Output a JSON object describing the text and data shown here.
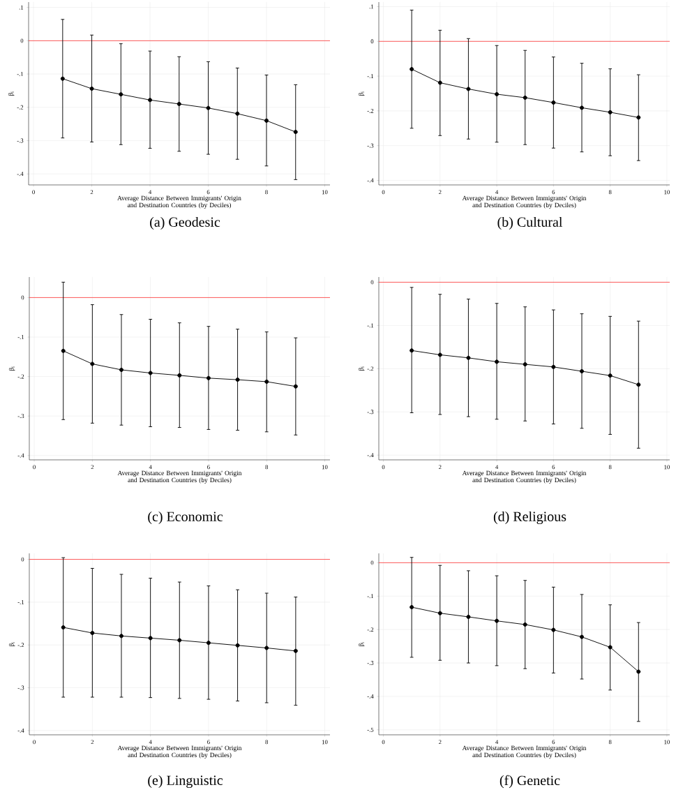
{
  "chart_data": [
    {
      "type": "line",
      "title": "(a) Geodesic",
      "xlabel": "Average Distance Between Immigrants' Origin and Destination Countries (by Deciles)",
      "ylabel": "β$_{i}$",
      "color": "#000000",
      "marker": "circle",
      "grid": true,
      "x": [
        1,
        2,
        3,
        4,
        5,
        6,
        7,
        8,
        9
      ],
      "values": [
        -0.114,
        -0.144,
        -0.161,
        -0.178,
        -0.19,
        -0.202,
        -0.219,
        -0.24,
        -0.274
      ],
      "errors": [
        [
          -0.292,
          0.064
        ],
        [
          -0.304,
          0.017
        ],
        [
          -0.312,
          -0.009
        ],
        [
          -0.323,
          -0.031
        ],
        [
          -0.332,
          -0.048
        ],
        [
          -0.341,
          -0.063
        ],
        [
          -0.356,
          -0.082
        ],
        [
          -0.376,
          -0.103
        ],
        [
          -0.417,
          -0.132
        ]
      ],
      "xlim": [
        -0.17,
        10.18
      ],
      "xticks": [
        0,
        2,
        4,
        6,
        8,
        10
      ],
      "ylim": [
        -0.433,
        0.116
      ],
      "yticks": [
        {
          "value": 0.1,
          "label": ".1"
        },
        {
          "value": 0,
          "label": "0"
        },
        {
          "value": -0.1,
          "label": "-.1"
        },
        {
          "value": -0.2,
          "label": "-.2"
        },
        {
          "value": -0.3,
          "label": "-.3"
        },
        {
          "value": -0.4,
          "label": "-.4"
        }
      ],
      "ref_lines": [
        {
          "axis": "y",
          "value": 0,
          "color": "#ff3333"
        }
      ]
    },
    {
      "type": "line",
      "title": "(b) Cultural",
      "xlabel": "Average Distance Between Immigrants' Origin and Destination Countries (by Deciles)",
      "ylabel": "β$_{i}$",
      "color": "#000000",
      "marker": "circle",
      "grid": true,
      "x": [
        1,
        2,
        3,
        4,
        5,
        6,
        7,
        8,
        9
      ],
      "values": [
        -0.08,
        -0.119,
        -0.137,
        -0.152,
        -0.162,
        -0.176,
        -0.191,
        -0.204,
        -0.219
      ],
      "errors": [
        [
          -0.25,
          0.09
        ],
        [
          -0.271,
          0.032
        ],
        [
          -0.281,
          0.008
        ],
        [
          -0.29,
          -0.012
        ],
        [
          -0.297,
          -0.026
        ],
        [
          -0.307,
          -0.045
        ],
        [
          -0.318,
          -0.063
        ],
        [
          -0.329,
          -0.079
        ],
        [
          -0.343,
          -0.096
        ]
      ],
      "xlim": [
        -0.16,
        10.1
      ],
      "xticks": [
        0,
        2,
        4,
        6,
        8,
        10
      ],
      "ylim": [
        -0.413,
        0.113
      ],
      "yticks": [
        {
          "value": 0.1,
          "label": ".1"
        },
        {
          "value": 0,
          "label": "0"
        },
        {
          "value": -0.1,
          "label": "-.1"
        },
        {
          "value": -0.2,
          "label": "-.2"
        },
        {
          "value": -0.3,
          "label": "-.3"
        },
        {
          "value": -0.4,
          "label": "-.4"
        }
      ],
      "ref_lines": [
        {
          "axis": "y",
          "value": 0,
          "color": "#ff3333"
        }
      ]
    },
    {
      "type": "line",
      "title": "(c) Economic",
      "xlabel": "Average Distance Between Immigrants' Origin and Destination Countries (by Deciles)",
      "ylabel": "β$_{i}$",
      "color": "#000000",
      "marker": "circle",
      "grid": true,
      "x": [
        1,
        2,
        3,
        4,
        5,
        6,
        7,
        8,
        9
      ],
      "values": [
        -0.135,
        -0.168,
        -0.183,
        -0.191,
        -0.197,
        -0.204,
        -0.208,
        -0.213,
        -0.225
      ],
      "errors": [
        [
          -0.309,
          0.039
        ],
        [
          -0.318,
          -0.018
        ],
        [
          -0.323,
          -0.043
        ],
        [
          -0.327,
          -0.055
        ],
        [
          -0.329,
          -0.064
        ],
        [
          -0.334,
          -0.073
        ],
        [
          -0.336,
          -0.08
        ],
        [
          -0.34,
          -0.087
        ],
        [
          -0.348,
          -0.102
        ]
      ],
      "xlim": [
        -0.17,
        10.18
      ],
      "xticks": [
        0,
        2,
        4,
        6,
        8,
        10
      ],
      "ylim": [
        -0.411,
        0.052
      ],
      "yticks": [
        {
          "value": 0,
          "label": "0"
        },
        {
          "value": -0.1,
          "label": "-.1"
        },
        {
          "value": -0.2,
          "label": "-.2"
        },
        {
          "value": -0.3,
          "label": "-.3"
        },
        {
          "value": -0.4,
          "label": "-.4"
        }
      ],
      "ref_lines": [
        {
          "axis": "y",
          "value": 0,
          "color": "#ff3333"
        }
      ]
    },
    {
      "type": "line",
      "title": "(d) Religious",
      "xlabel": "Average Distance Between Immigrants' Origin and Destination Countries (by Deciles)",
      "ylabel": "β$_{i}$",
      "color": "#000000",
      "marker": "circle",
      "grid": true,
      "x": [
        1,
        2,
        3,
        4,
        5,
        6,
        7,
        8,
        9
      ],
      "values": [
        -0.158,
        -0.168,
        -0.175,
        -0.184,
        -0.19,
        -0.196,
        -0.206,
        -0.216,
        -0.237
      ],
      "errors": [
        [
          -0.302,
          -0.012
        ],
        [
          -0.306,
          -0.028
        ],
        [
          -0.311,
          -0.039
        ],
        [
          -0.317,
          -0.049
        ],
        [
          -0.321,
          -0.057
        ],
        [
          -0.328,
          -0.064
        ],
        [
          -0.338,
          -0.073
        ],
        [
          -0.352,
          -0.079
        ],
        [
          -0.384,
          -0.09
        ]
      ],
      "xlim": [
        -0.16,
        10.1
      ],
      "xticks": [
        0,
        2,
        4,
        6,
        8,
        10
      ],
      "ylim": [
        -0.411,
        0.012
      ],
      "yticks": [
        {
          "value": 0,
          "label": "0"
        },
        {
          "value": -0.1,
          "label": "-.1"
        },
        {
          "value": -0.2,
          "label": "-.2"
        },
        {
          "value": -0.3,
          "label": "-.3"
        },
        {
          "value": -0.4,
          "label": "-.4"
        }
      ],
      "ref_lines": [
        {
          "axis": "y",
          "value": 0,
          "color": "#ff3333"
        }
      ]
    },
    {
      "type": "line",
      "title": "(e) Linguistic",
      "xlabel": "Average Distance Between Immigrants' Origin and Destination Countries (by Deciles)",
      "ylabel": "β$_{i}$",
      "color": "#000000",
      "marker": "circle",
      "grid": true,
      "x": [
        1,
        2,
        3,
        4,
        5,
        6,
        7,
        8,
        9
      ],
      "values": [
        -0.159,
        -0.172,
        -0.179,
        -0.184,
        -0.189,
        -0.195,
        -0.201,
        -0.207,
        -0.214
      ],
      "errors": [
        [
          -0.322,
          0.004
        ],
        [
          -0.322,
          -0.021
        ],
        [
          -0.322,
          -0.035
        ],
        [
          -0.323,
          -0.044
        ],
        [
          -0.325,
          -0.053
        ],
        [
          -0.327,
          -0.062
        ],
        [
          -0.331,
          -0.071
        ],
        [
          -0.335,
          -0.079
        ],
        [
          -0.341,
          -0.088
        ]
      ],
      "xlim": [
        -0.17,
        10.18
      ],
      "xticks": [
        0,
        2,
        4,
        6,
        8,
        10
      ],
      "ylim": [
        -0.41,
        0.014
      ],
      "yticks": [
        {
          "value": 0,
          "label": "0"
        },
        {
          "value": -0.1,
          "label": "-.1"
        },
        {
          "value": -0.2,
          "label": "-.2"
        },
        {
          "value": -0.3,
          "label": "-.3"
        },
        {
          "value": -0.4,
          "label": "-.4"
        }
      ],
      "ref_lines": [
        {
          "axis": "y",
          "value": 0,
          "color": "#ff3333"
        }
      ]
    },
    {
      "type": "line",
      "title": "(f) Genetic",
      "xlabel": "Average Distance Between Immigrants' Origin and Destination Countries (by Deciles)",
      "ylabel": "β$_{i}$",
      "color": "#000000",
      "marker": "circle",
      "grid": true,
      "x": [
        1,
        2,
        3,
        4,
        5,
        6,
        7,
        8,
        9
      ],
      "values": [
        -0.133,
        -0.151,
        -0.162,
        -0.174,
        -0.185,
        -0.201,
        -0.222,
        -0.253,
        -0.326
      ],
      "errors": [
        [
          -0.283,
          0.016
        ],
        [
          -0.292,
          -0.008
        ],
        [
          -0.3,
          -0.024
        ],
        [
          -0.308,
          -0.039
        ],
        [
          -0.317,
          -0.053
        ],
        [
          -0.33,
          -0.073
        ],
        [
          -0.348,
          -0.095
        ],
        [
          -0.381,
          -0.126
        ],
        [
          -0.475,
          -0.179
        ]
      ],
      "xlim": [
        -0.16,
        10.1
      ],
      "xticks": [
        0,
        2,
        4,
        6,
        8,
        10
      ],
      "ylim": [
        -0.515,
        0.028
      ],
      "yticks": [
        {
          "value": 0,
          "label": "0"
        },
        {
          "value": -0.1,
          "label": "-.1"
        },
        {
          "value": -0.2,
          "label": "-.2"
        },
        {
          "value": -0.3,
          "label": "-.3"
        },
        {
          "value": -0.4,
          "label": "-.4"
        },
        {
          "value": -0.5,
          "label": "-.5"
        }
      ],
      "ref_lines": [
        {
          "axis": "y",
          "value": 0,
          "color": "#ff3333"
        }
      ]
    }
  ]
}
